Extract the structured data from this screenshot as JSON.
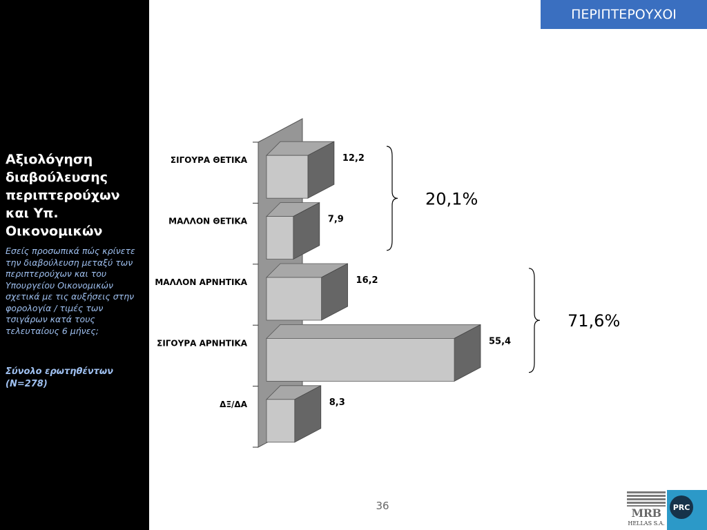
{
  "header": {
    "badge": "ΠΕΡΙΠΤΕΡΟΥΧΟΙ"
  },
  "sidebar": {
    "title": "Αξιολόγηση διαβούλευσης περιπτερούχων και Υπ. Οικονομικών",
    "question": "Εσείς προσωπικά πώς κρίνετε την διαβούλευση μεταξύ των περιπτερούχων και  του Υπουργείου Οικονομικών σχετικά με τις αυξήσεις στην φορολογία / τιμές των τσιγάρων κατά τους τελευταίους 6 μήνες;",
    "sample": "Σύνολο ερωτηθέντων (Ν=278)"
  },
  "chart_data": {
    "type": "bar",
    "orientation": "horizontal",
    "categories": [
      "ΣΙΓΟΥΡΑ ΘΕΤΙΚΑ",
      "ΜΑΛΛΟΝ ΘΕΤΙΚΑ",
      "ΜΑΛΛΟΝ ΑΡΝΗΤΙΚΑ",
      "ΣΙΓΟΥΡΑ ΑΡΝΗΤΙΚΑ",
      "ΔΞ/ΔΑ"
    ],
    "values": [
      12.2,
      7.9,
      16.2,
      55.4,
      8.3
    ],
    "value_labels": [
      "12,2",
      "7,9",
      "16,2",
      "55,4",
      "8,3"
    ],
    "xlim": [
      0,
      60
    ],
    "groups": [
      {
        "label": "20,1%",
        "from": 0,
        "to": 1
      },
      {
        "label": "71,6%",
        "from": 2,
        "to": 3
      }
    ],
    "colors": {
      "bar_front": "#c8c8c8",
      "bar_top": "#a8a8a8",
      "bar_side": "#666666",
      "wall": "#969696"
    }
  },
  "footer": {
    "page_number": "36"
  },
  "logos": {
    "mrb_text": "MRB",
    "mrb_sub": "HELLAS S.A.",
    "prc_text": "PRC"
  }
}
